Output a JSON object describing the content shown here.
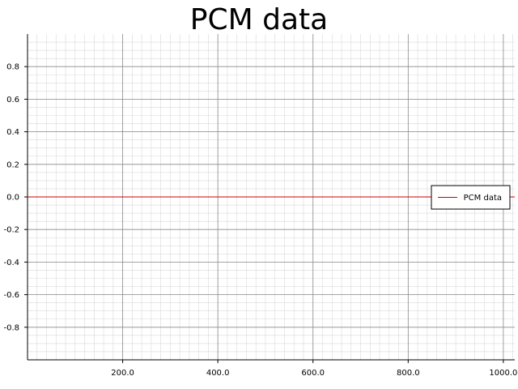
{
  "chart_data": {
    "type": "line",
    "title": "PCM data",
    "xlabel": "",
    "ylabel": "",
    "xlim": [
      0,
      1024
    ],
    "ylim": [
      -1.0,
      1.0
    ],
    "x_ticks": [
      "200.0",
      "400.0",
      "600.0",
      "800.0",
      "1000.0"
    ],
    "x_tick_values": [
      200,
      400,
      600,
      800,
      1000
    ],
    "y_ticks": [
      "0.8",
      "0.6",
      "0.4",
      "0.2",
      "0.0",
      "-0.2",
      "-0.4",
      "-0.6",
      "-0.8"
    ],
    "y_tick_values": [
      0.8,
      0.6,
      0.4,
      0.2,
      0.0,
      -0.2,
      -0.4,
      -0.6,
      -0.8
    ],
    "grid": true,
    "minor_grid": true,
    "legend": "right",
    "series": [
      {
        "name": "PCM data",
        "color": "#cc0000",
        "x": [
          0,
          1024
        ],
        "y": [
          0.0,
          0.0
        ]
      }
    ]
  }
}
